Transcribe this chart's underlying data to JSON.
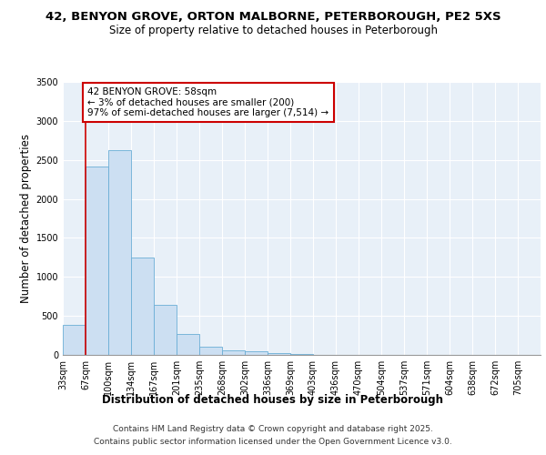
{
  "title_line1": "42, BENYON GROVE, ORTON MALBORNE, PETERBOROUGH, PE2 5XS",
  "title_line2": "Size of property relative to detached houses in Peterborough",
  "xlabel": "Distribution of detached houses by size in Peterborough",
  "ylabel": "Number of detached properties",
  "categories": [
    "33sqm",
    "67sqm",
    "100sqm",
    "134sqm",
    "167sqm",
    "201sqm",
    "235sqm",
    "268sqm",
    "302sqm",
    "336sqm",
    "369sqm",
    "403sqm",
    "436sqm",
    "470sqm",
    "504sqm",
    "537sqm",
    "571sqm",
    "604sqm",
    "638sqm",
    "672sqm",
    "705sqm"
  ],
  "bar_values": [
    390,
    2420,
    2620,
    1250,
    640,
    270,
    105,
    60,
    45,
    20,
    8,
    0,
    0,
    0,
    0,
    0,
    0,
    0,
    0,
    0,
    0
  ],
  "bar_color": "#ccdff2",
  "bar_edge_color": "#6aaed6",
  "property_line_color": "#cc0000",
  "property_line_x": 1,
  "annotation_text": "42 BENYON GROVE: 58sqm\n← 3% of detached houses are smaller (200)\n97% of semi-detached houses are larger (7,514) →",
  "annotation_box_color": "#cc0000",
  "ylim": [
    0,
    3500
  ],
  "yticks": [
    0,
    500,
    1000,
    1500,
    2000,
    2500,
    3000,
    3500
  ],
  "background_color": "#e8f0f8",
  "grid_color": "#ffffff",
  "footer_line1": "Contains HM Land Registry data © Crown copyright and database right 2025.",
  "footer_line2": "Contains public sector information licensed under the Open Government Licence v3.0.",
  "title_fontsize": 9.5,
  "subtitle_fontsize": 8.5,
  "axis_label_fontsize": 8.5,
  "tick_fontsize": 7,
  "annotation_fontsize": 7.5,
  "footer_fontsize": 6.5
}
